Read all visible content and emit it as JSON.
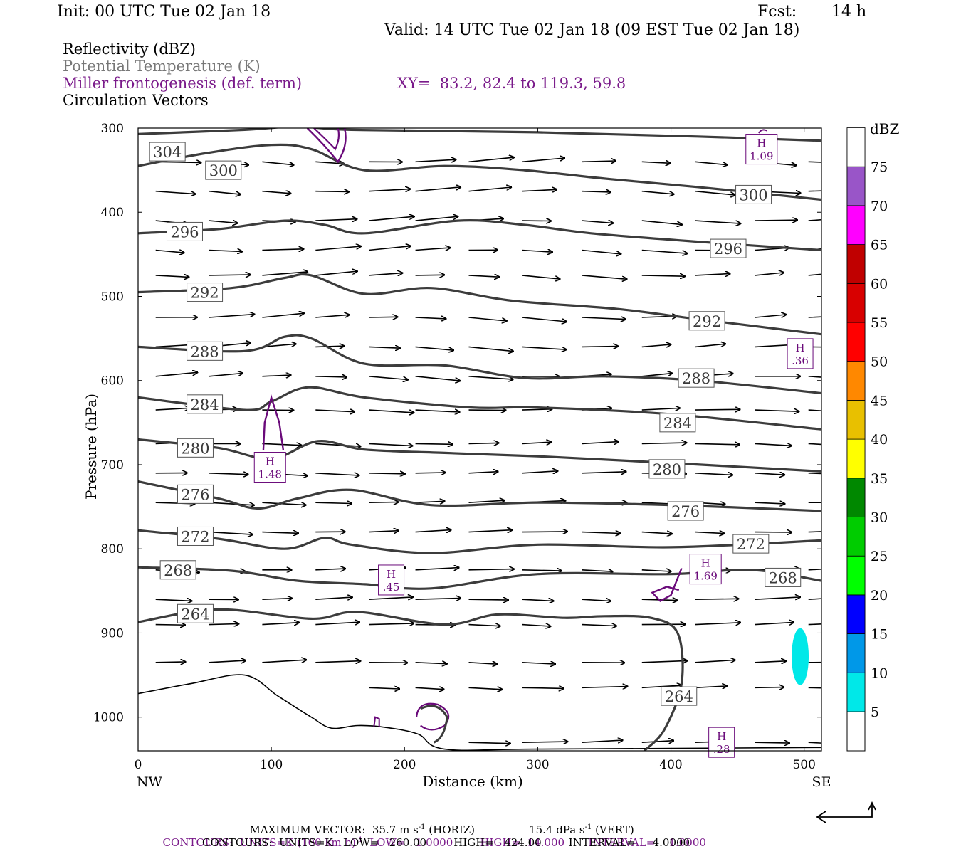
{
  "header": {
    "init": "Init: 00 UTC Tue 02 Jan 18",
    "fcst_label": "Fcst:",
    "fcst_value": "14 h",
    "valid": "Valid: 14 UTC Tue 02 Jan 18 (09 EST Tue 02 Jan 18)"
  },
  "legend": {
    "reflectivity": "Reflectivity (dBZ)",
    "theta": "Potential Temperature (K)",
    "frontogenesis": "Miller frontogenesis (def. term)",
    "xy": "XY=  83.2, 82.4 to 119.3, 59.8",
    "vectors": "Circulation Vectors"
  },
  "colors": {
    "theta": "#3c3c3c",
    "frontogenesis": "#6a0a7a",
    "cyan": "#00e8e8"
  },
  "chart_data": {
    "type": "line",
    "title": "",
    "xlabel": "Distance (km)",
    "ylabel": "Pressure (hPa)",
    "xlim": [
      0,
      513
    ],
    "ylim": [
      1040,
      300
    ],
    "x_ticks": [
      "0",
      "100",
      "200",
      "300",
      "400",
      "500"
    ],
    "y_ticks": [
      "300",
      "400",
      "500",
      "600",
      "700",
      "800",
      "900",
      "1000"
    ],
    "x_end_labels": [
      "NW",
      "SE"
    ],
    "theta_contours_K": [
      {
        "label": "304",
        "label_x": 22,
        "label_p": 328,
        "points": [
          [
            0,
            307
          ],
          [
            80,
            302
          ],
          [
            120,
            298
          ],
          [
            160,
            302
          ],
          [
            300,
            305
          ],
          [
            420,
            310
          ],
          [
            513,
            315
          ]
        ]
      },
      {
        "label": "300",
        "label_x": 64,
        "label_p": 350,
        "points": [
          [
            0,
            345
          ],
          [
            50,
            330
          ],
          [
            100,
            320
          ],
          [
            130,
            325
          ],
          [
            170,
            350
          ],
          [
            230,
            345
          ],
          [
            290,
            350
          ],
          [
            350,
            360
          ],
          [
            420,
            370
          ],
          [
            513,
            385
          ]
        ]
      },
      {
        "label": "296",
        "label_x": 35,
        "label_p": 423,
        "points": [
          [
            0,
            425
          ],
          [
            60,
            420
          ],
          [
            110,
            410
          ],
          [
            140,
            415
          ],
          [
            170,
            425
          ],
          [
            240,
            410
          ],
          [
            290,
            415
          ],
          [
            340,
            425
          ],
          [
            420,
            435
          ],
          [
            513,
            445
          ]
        ]
      },
      {
        "label": "292",
        "label_x": 50,
        "label_p": 495,
        "points": [
          [
            0,
            495
          ],
          [
            70,
            490
          ],
          [
            110,
            478
          ],
          [
            130,
            475
          ],
          [
            170,
            497
          ],
          [
            220,
            490
          ],
          [
            280,
            505
          ],
          [
            360,
            515
          ],
          [
            420,
            527
          ],
          [
            513,
            545
          ]
        ]
      },
      {
        "label": "288",
        "label_x": 50,
        "label_p": 565,
        "points": [
          [
            0,
            560
          ],
          [
            80,
            565
          ],
          [
            110,
            548
          ],
          [
            130,
            550
          ],
          [
            170,
            580
          ],
          [
            230,
            582
          ],
          [
            290,
            597
          ],
          [
            350,
            595
          ],
          [
            420,
            600
          ],
          [
            513,
            615
          ]
        ]
      },
      {
        "label": "284",
        "label_x": 50,
        "label_p": 628,
        "points": [
          [
            0,
            620
          ],
          [
            80,
            635
          ],
          [
            100,
            625
          ],
          [
            128,
            608
          ],
          [
            170,
            620
          ],
          [
            250,
            632
          ],
          [
            300,
            632
          ],
          [
            400,
            640
          ],
          [
            513,
            658
          ]
        ]
      },
      {
        "label": "280",
        "label_x": 43,
        "label_p": 680,
        "points": [
          [
            0,
            670
          ],
          [
            60,
            680
          ],
          [
            100,
            693
          ],
          [
            135,
            672
          ],
          [
            170,
            682
          ],
          [
            230,
            686
          ],
          [
            300,
            690
          ],
          [
            400,
            698
          ],
          [
            513,
            708
          ]
        ]
      },
      {
        "label": "276",
        "label_x": 43,
        "label_p": 735,
        "points": [
          [
            0,
            720
          ],
          [
            60,
            740
          ],
          [
            90,
            752
          ],
          [
            120,
            740
          ],
          [
            160,
            730
          ],
          [
            220,
            748
          ],
          [
            300,
            745
          ],
          [
            400,
            748
          ],
          [
            513,
            755
          ]
        ]
      },
      {
        "label": "272",
        "label_x": 43,
        "label_p": 785,
        "points": [
          [
            0,
            778
          ],
          [
            60,
            788
          ],
          [
            110,
            800
          ],
          [
            140,
            787
          ],
          [
            160,
            795
          ],
          [
            220,
            805
          ],
          [
            300,
            795
          ],
          [
            400,
            798
          ],
          [
            513,
            790
          ]
        ]
      },
      {
        "label": "268",
        "label_x": 30,
        "label_p": 825,
        "points": [
          [
            0,
            822
          ],
          [
            70,
            826
          ],
          [
            120,
            838
          ],
          [
            170,
            842
          ],
          [
            220,
            847
          ],
          [
            300,
            830
          ],
          [
            400,
            830
          ],
          [
            460,
            825
          ],
          [
            513,
            838
          ]
        ]
      },
      {
        "label": "264",
        "label_x": 43,
        "label_p": 877,
        "points": [
          [
            0,
            887
          ],
          [
            60,
            872
          ],
          [
            130,
            883
          ],
          [
            165,
            875
          ],
          [
            230,
            890
          ],
          [
            270,
            878
          ],
          [
            320,
            882
          ],
          [
            350,
            880
          ],
          [
            385,
            882
          ],
          [
            405,
            900
          ],
          [
            408,
            960
          ],
          [
            395,
            1015
          ],
          [
            380,
            1040
          ]
        ]
      },
      {
        "label": "264",
        "label_x": 406,
        "label_p": 975,
        "points": []
      }
    ],
    "theta_right_labels": [
      {
        "label": "300",
        "x": 462,
        "p": 379
      },
      {
        "label": "296",
        "x": 443,
        "p": 443
      },
      {
        "label": "292",
        "x": 427,
        "p": 529
      },
      {
        "label": "288",
        "x": 419,
        "p": 597
      },
      {
        "label": "284",
        "x": 405,
        "p": 650
      },
      {
        "label": "280",
        "x": 397,
        "p": 705
      },
      {
        "label": "276",
        "x": 411,
        "p": 755
      },
      {
        "label": "272",
        "x": 460,
        "p": 794
      },
      {
        "label": "268",
        "x": 484,
        "p": 834
      }
    ],
    "frontogenesis_maxima": [
      {
        "label": "H",
        "value": "1.09",
        "x": 468,
        "p": 325
      },
      {
        "label": "H",
        "value": "1.48",
        "x": 99,
        "p": 703
      },
      {
        "label": "H",
        "value": ".36",
        "x": 497,
        "p": 568
      },
      {
        "label": "H",
        "value": ".45",
        "x": 190,
        "p": 837
      },
      {
        "label": "H",
        "value": "1.69",
        "x": 426,
        "p": 824
      },
      {
        "label": "H",
        "value": ".28",
        "x": 438,
        "p": 1030
      }
    ],
    "terrain_hPa": [
      [
        0,
        972
      ],
      [
        40,
        960
      ],
      [
        80,
        950
      ],
      [
        105,
        975
      ],
      [
        130,
        1000
      ],
      [
        145,
        1013
      ],
      [
        165,
        1010
      ],
      [
        185,
        1012
      ],
      [
        210,
        1020
      ],
      [
        230,
        1038
      ],
      [
        300,
        1038
      ],
      [
        513,
        1036
      ]
    ],
    "reflectivity_area": {
      "x": 497,
      "p": 928,
      "dBZ": 5
    },
    "vector_levels_hPa": [
      340,
      375,
      410,
      445,
      475,
      525,
      560,
      595,
      635,
      675,
      710,
      745,
      780,
      825,
      860,
      890,
      935,
      965,
      1030
    ],
    "vector_columns_km": [
      10,
      50,
      90,
      130,
      170,
      205,
      245,
      285,
      330,
      375,
      415,
      460,
      500
    ]
  },
  "colorbar": {
    "title": "dBZ",
    "labels": [
      "5",
      "10",
      "15",
      "20",
      "25",
      "30",
      "35",
      "40",
      "45",
      "50",
      "55",
      "60",
      "65",
      "70",
      "75"
    ],
    "colors": [
      "#00e8e8",
      "#0098e8",
      "#0000ff",
      "#00ff00",
      "#00cc00",
      "#008800",
      "#ffff00",
      "#e8c000",
      "#ff8800",
      "#ff0000",
      "#d80000",
      "#c00000",
      "#ff00ff",
      "#9955c8",
      "#ffffff"
    ]
  },
  "footer": {
    "max_vector_a": "MAXIMUM VECTOR:  35.7 m s",
    "max_vector_a_exp": "-1",
    "max_vector_b": " (HORIZ)",
    "max_vector_c": "15.4 dPa s",
    "max_vector_c_exp": "-1",
    "max_vector_d": " (VERT)",
    "contours1_a": "CONTOURS:  UNITS=K (100 km h)",
    "contours1_exp": "-1",
    "contours1_b": "  LOW=   1.0000        HIGH=  14.000       INTERVAL=    1.0000",
    "contours2": "CONTOURS:  UNITS=K   LOW=   260.00        HIGH=   424.00        INTERVAL=     4.0000"
  }
}
